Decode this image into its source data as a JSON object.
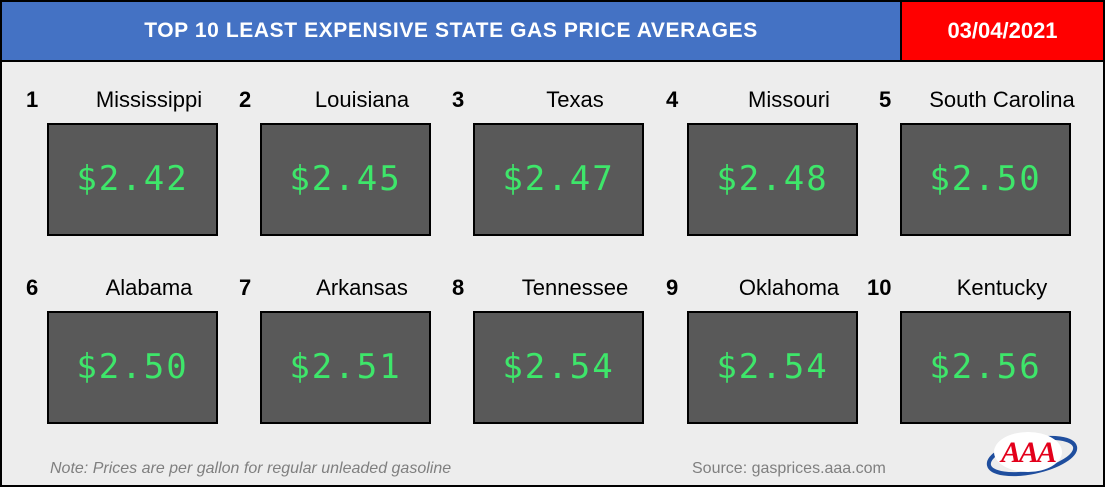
{
  "header": {
    "title": "TOP 10 LEAST EXPENSIVE STATE GAS PRICE AVERAGES",
    "date": "03/04/2021"
  },
  "colors": {
    "title_bar": "#4472c4",
    "date_bar": "#ff0000",
    "price_box": "#595959",
    "price_text": "#3ee66a",
    "background": "#ededed"
  },
  "rankings": [
    {
      "rank": "1",
      "state": "Mississippi",
      "price": "$2.42"
    },
    {
      "rank": "2",
      "state": "Louisiana",
      "price": "$2.45"
    },
    {
      "rank": "3",
      "state": "Texas",
      "price": "$2.47"
    },
    {
      "rank": "4",
      "state": "Missouri",
      "price": "$2.48"
    },
    {
      "rank": "5",
      "state": "South Carolina",
      "price": "$2.50"
    },
    {
      "rank": "6",
      "state": "Alabama",
      "price": "$2.50"
    },
    {
      "rank": "7",
      "state": "Arkansas",
      "price": "$2.51"
    },
    {
      "rank": "8",
      "state": "Tennessee",
      "price": "$2.54"
    },
    {
      "rank": "9",
      "state": "Oklahoma",
      "price": "$2.54"
    },
    {
      "rank": "10",
      "state": "Kentucky",
      "price": "$2.56"
    }
  ],
  "footer": {
    "note": "Note: Prices are per gallon for regular unleaded gasoline",
    "source": "Source: gasprices.aaa.com",
    "logo_text": "AAA",
    "logo_icon": "aaa-logo-icon"
  }
}
